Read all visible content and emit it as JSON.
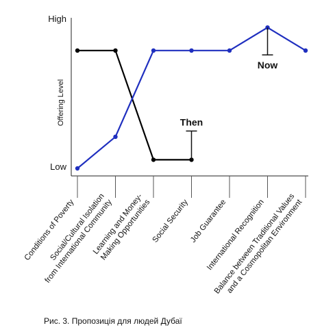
{
  "caption": "Рис. 3. Пропозиція для людей Дубаї",
  "chart_data": {
    "type": "line",
    "ylabel": "Offering Level",
    "y_ticks": [
      "Low",
      "High"
    ],
    "ylim": [
      0,
      1
    ],
    "categories": [
      [
        "Conditions of Poverty"
      ],
      [
        "Social/Cultural Isolation",
        "from International Community"
      ],
      [
        "Learning and Money-",
        "Making Opportunities"
      ],
      [
        "Social Security"
      ],
      [
        "Job Guarantee"
      ],
      [
        "International Recognition"
      ],
      [
        "Balance between Traditional Values",
        "and a Cosmopolitan Environment"
      ]
    ],
    "series": [
      {
        "name": "Then",
        "color": "#000000",
        "values": [
          0.82,
          0.82,
          0.06,
          0.06,
          null,
          null,
          null
        ]
      },
      {
        "name": "Now",
        "color": "#1f2fbf",
        "values": [
          0.0,
          0.22,
          0.82,
          0.82,
          0.82,
          0.98,
          0.82
        ]
      }
    ],
    "annotations": [
      {
        "text": "Then",
        "series": "Then",
        "at_category": 3
      },
      {
        "text": "Now",
        "series": "Now",
        "at_category": 5
      }
    ],
    "grid": false,
    "legend": "none"
  }
}
